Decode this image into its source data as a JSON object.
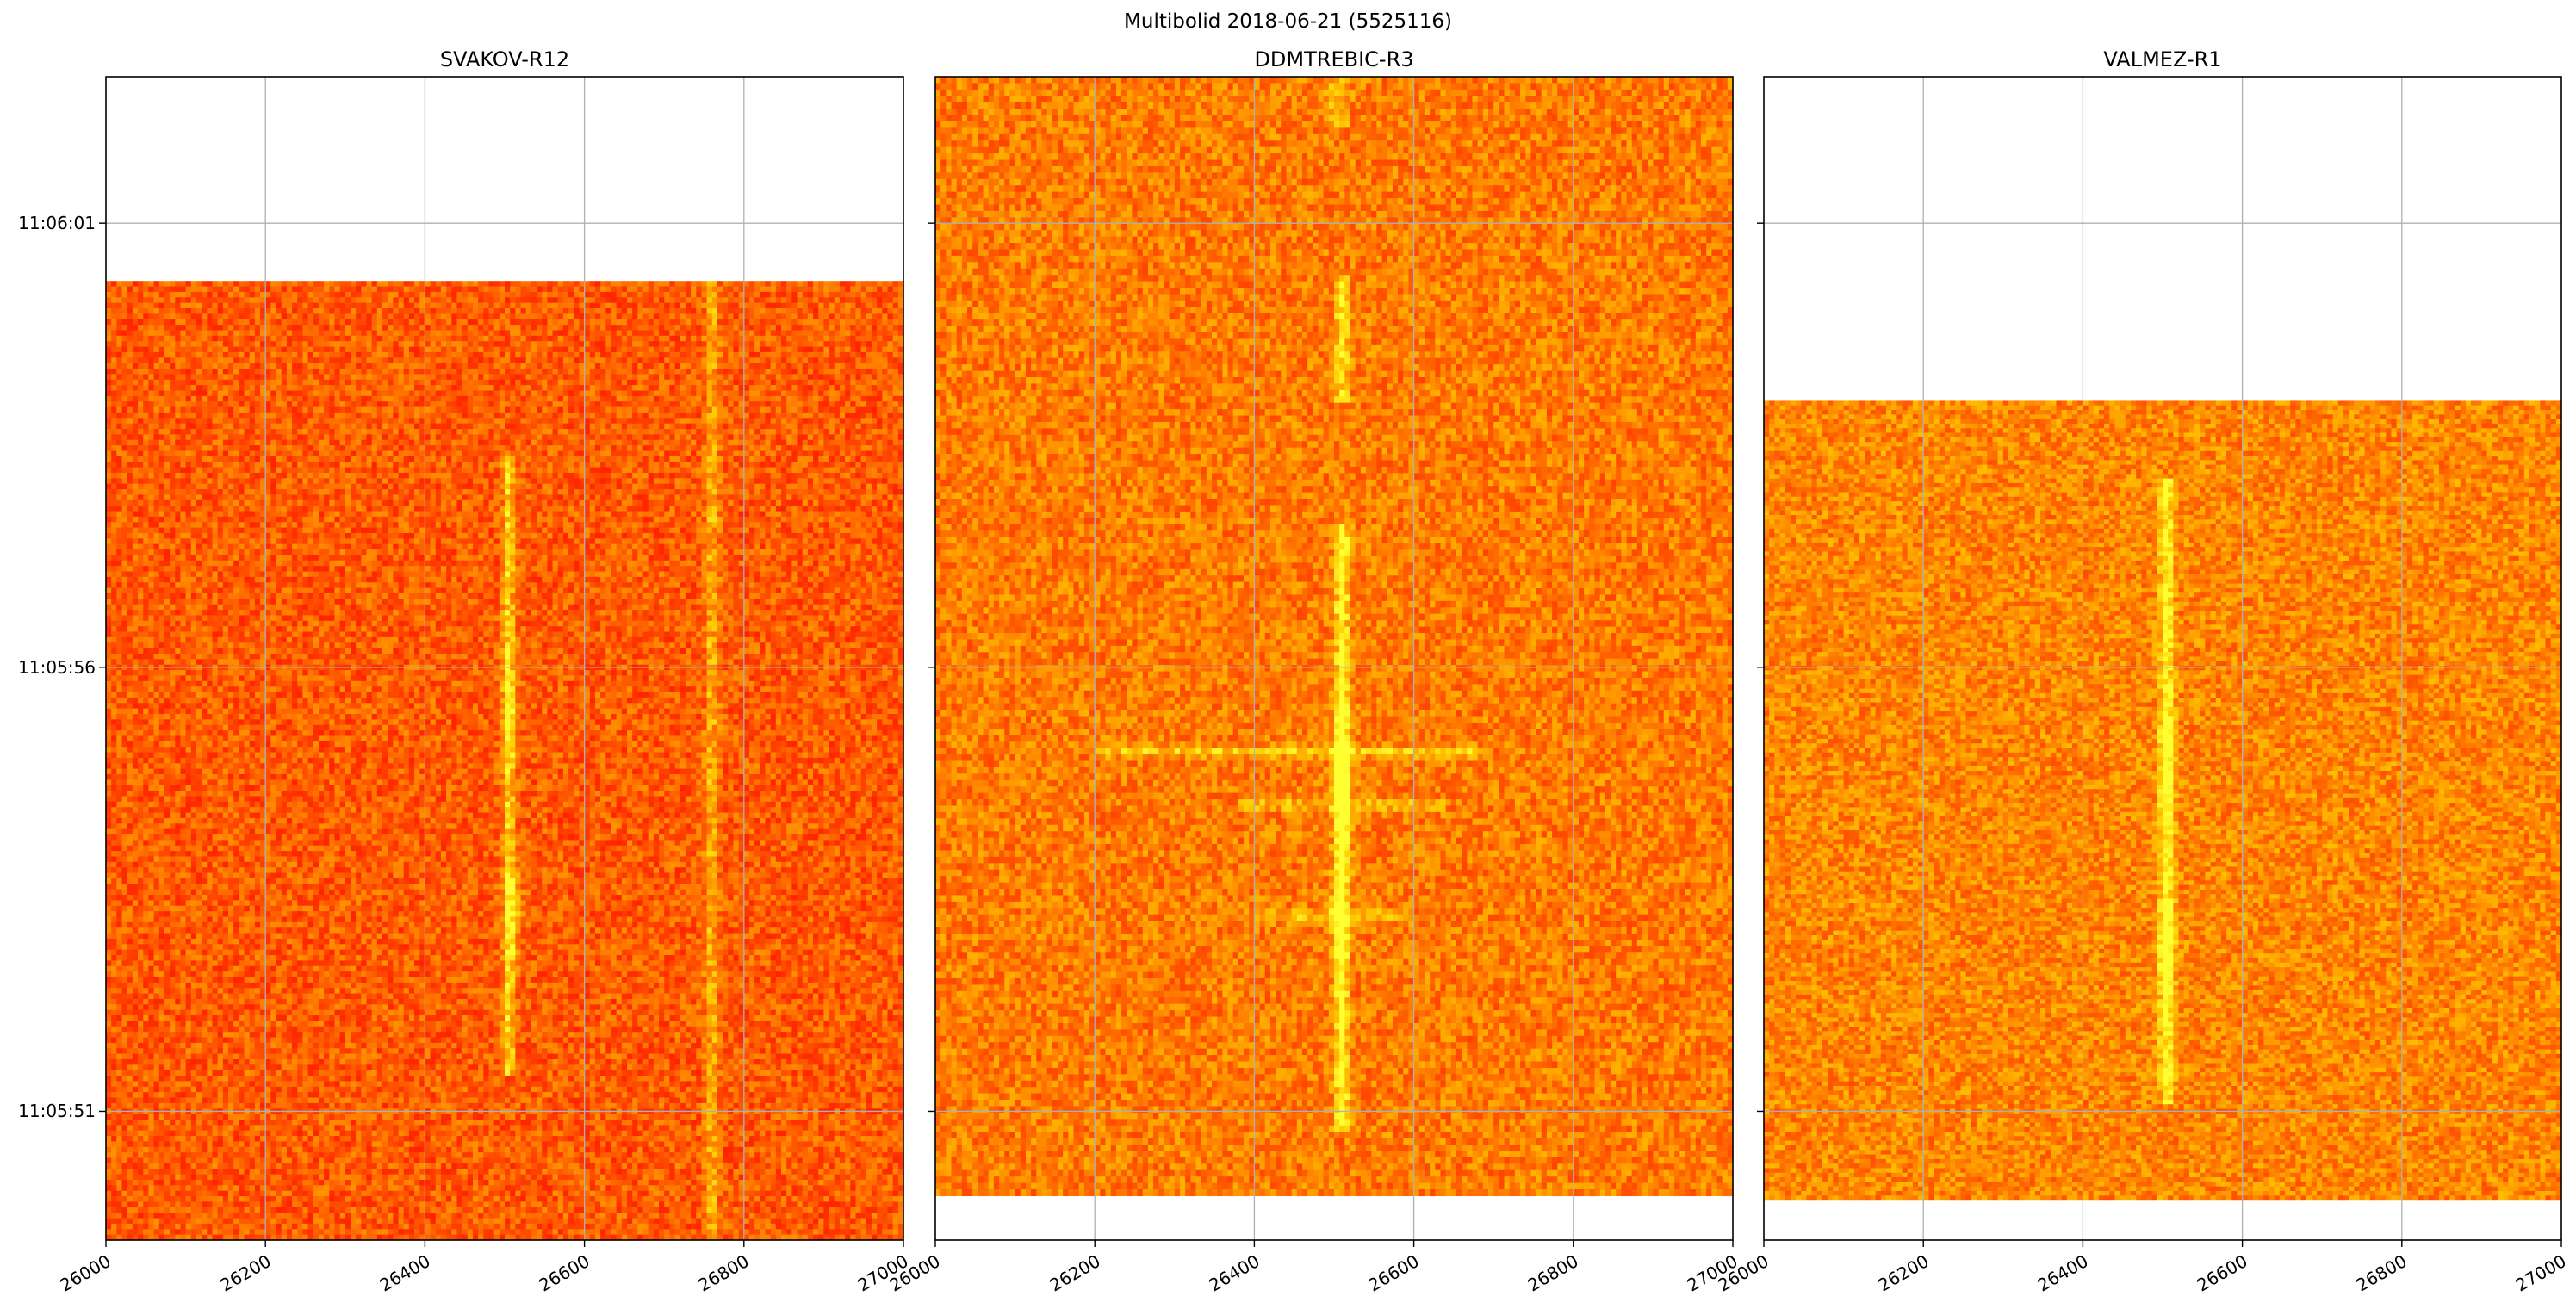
{
  "title": "Multibolid 2018-06-21 (5525116)",
  "colors": {
    "colormap": [
      "#ff0000",
      "#ff8c00",
      "#ffd700",
      "#ffff33"
    ],
    "grid": "#b0b0b0",
    "axes": "#000000"
  },
  "chart_data": [
    {
      "type": "heatmap",
      "title": "SVAKOV-R12",
      "xlim": [
        26000,
        27000
      ],
      "xticks": [
        "26000",
        "26200",
        "26400",
        "26600",
        "26800",
        "27000"
      ],
      "yticks": [
        "11:06:01",
        "11:05:56",
        "11:05:51"
      ],
      "y_axis_seconds_top_to_bottom": [
        -6.65,
        6.45
      ],
      "data_time_range_seconds": [
        -4.35,
        6.45
      ],
      "noise_level": 0.34,
      "grid": true,
      "lines": [
        {
          "freq": 26505,
          "t_start": -2.4,
          "t_end": 4.6,
          "strength": 0.55,
          "width": 5
        },
        {
          "freq": 26760,
          "t_start": -4.35,
          "t_end": 6.45,
          "strength": 0.35,
          "width": 6
        }
      ],
      "blobs": [
        {
          "freq": 26510,
          "t": 2.7,
          "strength": 0.35
        },
        {
          "freq": 26505,
          "t": 0.6,
          "strength": 0.25
        }
      ],
      "hstreaks": []
    },
    {
      "type": "heatmap",
      "title": "DDMTREBIC-R3",
      "xlim": [
        26000,
        27000
      ],
      "xticks": [
        "26000",
        "26200",
        "26400",
        "26600",
        "26800",
        "27000"
      ],
      "yticks": [],
      "y_axis_seconds_top_to_bottom": [
        -6.65,
        6.45
      ],
      "data_time_range_seconds": [
        -6.65,
        5.95
      ],
      "noise_level": 0.46,
      "grid": true,
      "lines": [
        {
          "freq": 26510,
          "t_start": -1.6,
          "t_end": 5.2,
          "strength": 0.62,
          "width": 6
        },
        {
          "freq": 26510,
          "t_start": -4.4,
          "t_end": -3.0,
          "strength": 0.45,
          "width": 6
        },
        {
          "freq": 26505,
          "t_start": -6.65,
          "t_end": -6.1,
          "strength": 0.35,
          "width": 8
        }
      ],
      "blobs": [
        {
          "freq": 26510,
          "t": 1.0,
          "strength": 0.4
        },
        {
          "freq": 26510,
          "t": 1.6,
          "strength": 0.3
        },
        {
          "freq": 26505,
          "t": 2.8,
          "strength": 0.3
        }
      ],
      "hstreaks": [
        {
          "t": 0.95,
          "f0": 26200,
          "f1": 26700,
          "strength": 0.3
        },
        {
          "t": 1.55,
          "f0": 26380,
          "f1": 26640,
          "strength": 0.25
        },
        {
          "t": 2.8,
          "f0": 26400,
          "f1": 26600,
          "strength": 0.3
        }
      ]
    },
    {
      "type": "heatmap",
      "title": "VALMEZ-R1",
      "xlim": [
        26000,
        27000
      ],
      "xticks": [
        "26000",
        "26200",
        "26400",
        "26600",
        "26800",
        "27000"
      ],
      "yticks": [],
      "y_axis_seconds_top_to_bottom": [
        -6.65,
        6.45
      ],
      "data_time_range_seconds": [
        -3.0,
        6.0
      ],
      "noise_level": 0.5,
      "grid": true,
      "lines": [
        {
          "freq": 26505,
          "t_start": -2.1,
          "t_end": 4.9,
          "strength": 0.55,
          "width": 6
        }
      ],
      "blobs": [
        {
          "freq": 26505,
          "t": 3.2,
          "strength": 0.3
        },
        {
          "freq": 26505,
          "t": 1.0,
          "strength": 0.2
        }
      ],
      "hstreaks": []
    }
  ]
}
